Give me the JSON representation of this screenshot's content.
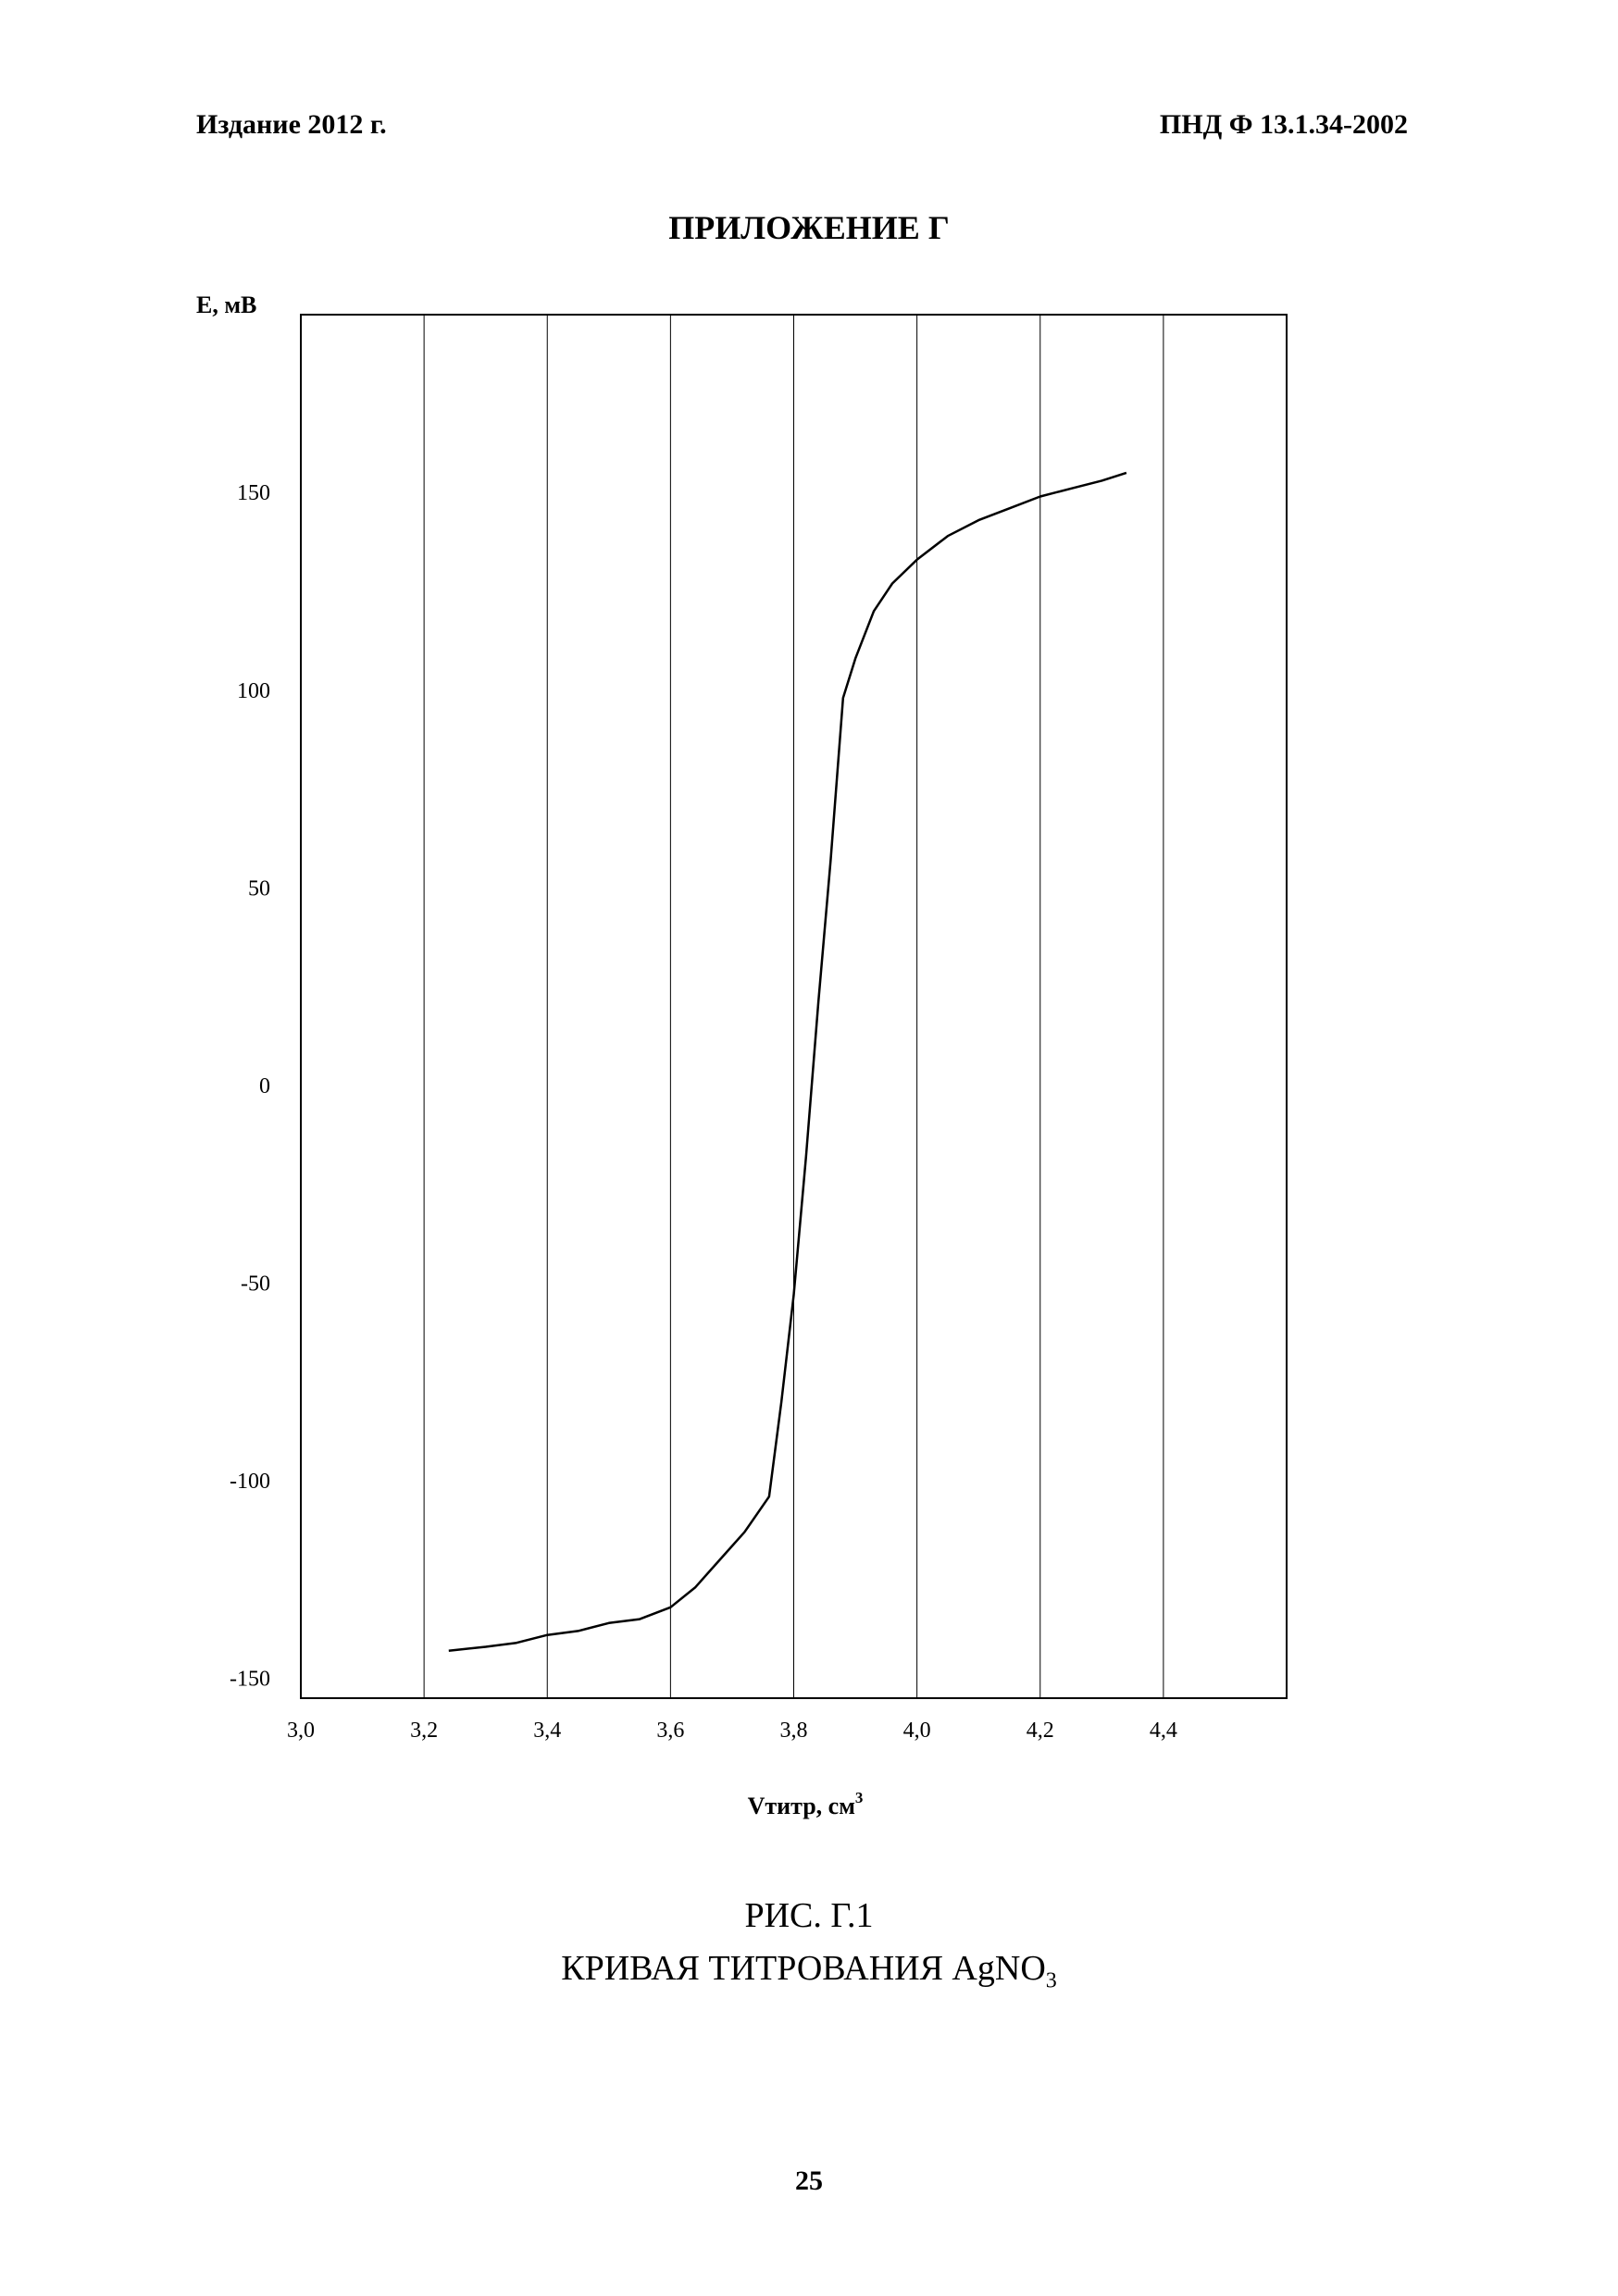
{
  "header": {
    "left": "Издание 2012 г.",
    "right": "ПНД Ф 13.1.34-2002"
  },
  "appendix_title": "ПРИЛОЖЕНИЕ Г",
  "figure": {
    "number": "РИС. Г.1",
    "caption_prefix": "КРИВАЯ ТИТРОВАНИЯ AgNO",
    "caption_subscript": "3"
  },
  "page_number": "25",
  "colors": {
    "line": "#000000",
    "grid": "#000000",
    "background": "#ffffff"
  },
  "chart_data": {
    "type": "line",
    "title": "",
    "ylabel": "E, мВ",
    "xlabel": "Vтитр, см",
    "xlabel_superscript": "3",
    "xlim": [
      3.0,
      4.6
    ],
    "ylim": [
      -155,
      195
    ],
    "xticks": [
      3.0,
      3.2,
      3.4,
      3.6,
      3.8,
      4.0,
      4.2,
      4.4
    ],
    "xtick_labels": [
      "3,0",
      "3,2",
      "3,4",
      "3,6",
      "3,8",
      "4,0",
      "4,2",
      "4,4"
    ],
    "yticks": [
      150,
      100,
      50,
      0,
      -50,
      -100,
      -150
    ],
    "ytick_labels": [
      "150",
      "100",
      "50",
      "0",
      "-50",
      "-100",
      "-150"
    ],
    "grid": "vertical",
    "legend": "none",
    "series": [
      {
        "x": [
          3.24,
          3.3,
          3.35,
          3.4,
          3.45,
          3.5,
          3.55,
          3.6,
          3.64,
          3.68,
          3.72,
          3.76,
          3.78,
          3.8,
          3.82,
          3.84,
          3.86,
          3.88,
          3.9,
          3.93,
          3.96,
          4.0,
          4.05,
          4.1,
          4.15,
          4.2,
          4.25,
          4.3,
          4.34
        ],
        "y": [
          -143,
          -142,
          -141,
          -139,
          -138,
          -136,
          -135,
          -132,
          -127,
          -120,
          -113,
          -104,
          -80,
          -53,
          -18,
          21,
          57,
          98,
          108,
          120,
          127,
          133,
          139,
          143,
          146,
          149,
          151,
          153,
          155
        ]
      }
    ]
  }
}
